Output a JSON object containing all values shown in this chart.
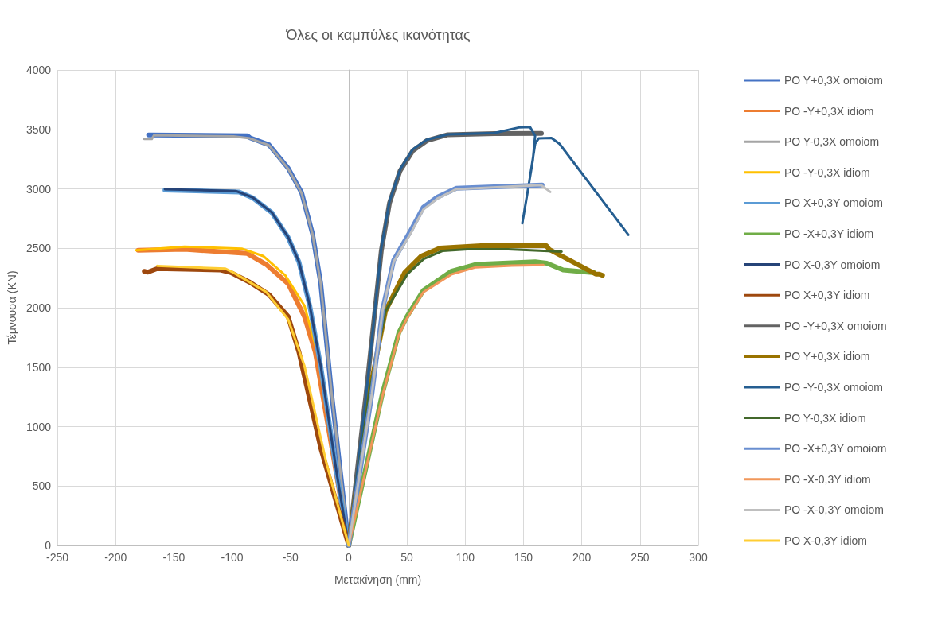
{
  "chart_data": {
    "type": "line",
    "title": "Όλες οι καμπύλες ικανότητας",
    "xlabel": "Μετακίνηση (mm)",
    "ylabel": "Τέμνουσα (KN)",
    "xlim": [
      -250,
      300
    ],
    "xticks": [
      -250,
      -200,
      -150,
      -100,
      -50,
      0,
      50,
      100,
      150,
      200,
      250,
      300
    ],
    "ylim": [
      0,
      4000
    ],
    "yticks": [
      0,
      500,
      1000,
      1500,
      2000,
      2500,
      3000,
      3500,
      4000
    ],
    "grid": true,
    "legend": "right",
    "marker": "none",
    "line_style": "solid",
    "series": [
      {
        "name": "PO Y+0,3X omoiom",
        "color": "#4472c4",
        "x": [
          -171.7,
          -87,
          -84.8,
          -68.4,
          -52,
          -40.4,
          -31,
          -24,
          -14.7,
          0
        ],
        "values": [
          3454,
          3447,
          3430,
          3370,
          3175,
          2968,
          2620,
          2205,
          1281,
          0
        ]
      },
      {
        "name": "PO -Y+0,3X idiom",
        "color": "#ed7d31",
        "x": [
          -180.6,
          -140.9,
          -87,
          -70.8,
          -52,
          -38,
          -28.7,
          -12.4,
          0
        ],
        "values": [
          2484,
          2491,
          2456,
          2364,
          2203,
          1926,
          1627,
          705,
          0
        ]
      },
      {
        "name": "PO Y-0,3X omoiom",
        "color": "#a5a5a5",
        "x": [
          -175.4,
          -169,
          -167,
          -98.8,
          -84.8,
          -68.4,
          -52,
          -40.4,
          -31,
          -24,
          -14.7,
          0
        ],
        "values": [
          3419,
          3419,
          3451,
          3442,
          3424,
          3366,
          3170,
          2963,
          2617,
          2203,
          1281,
          0
        ]
      },
      {
        "name": "PO -Y-0,3X idiom",
        "color": "#ffc000",
        "x": [
          -182.4,
          -140.9,
          -91.8,
          -73,
          -54.4,
          -38,
          -26.4,
          -12.4,
          0
        ],
        "values": [
          2484,
          2514,
          2497,
          2433,
          2272,
          2018,
          1604,
          705,
          0
        ]
      },
      {
        "name": "PO X+0,3Y omoiom",
        "color": "#5b9bd5",
        "x": [
          -157.7,
          -94,
          -82.5,
          -66,
          -52,
          -42.7,
          -33.4,
          -24,
          -10,
          0
        ],
        "values": [
          2990,
          2974,
          2925,
          2800,
          2592,
          2385,
          2016,
          1509,
          590,
          0
        ]
      },
      {
        "name": "PO -X+0,3Y idiom",
        "color": "#70ad47",
        "x": [
          0,
          29,
          43,
          50,
          64,
          88,
          109,
          160,
          170,
          184,
          210.6
        ],
        "values": [
          0,
          1281,
          1788,
          1926,
          2145,
          2306,
          2364,
          2387,
          2375,
          2318,
          2295
        ]
      },
      {
        "name": "PO X-0,3Y omoiom",
        "color": "#264478",
        "x": [
          -157.7,
          -96.5,
          -82.5,
          -66,
          -52,
          -42.7,
          -33.4,
          -24,
          -10,
          0
        ],
        "values": [
          2997,
          2981,
          2928,
          2802,
          2594,
          2387,
          2018,
          1511,
          590,
          0
        ]
      },
      {
        "name": "PO X+0,3Y idiom",
        "color": "#9e480e",
        "x": [
          -175.4,
          -172.4,
          -164.2,
          -110.5,
          -101,
          -84.8,
          -68.4,
          -52,
          -42.7,
          -24,
          0
        ],
        "values": [
          2306,
          2299,
          2329,
          2318,
          2295,
          2214,
          2110,
          1926,
          1627,
          820,
          0
        ]
      },
      {
        "name": "PO -Y+0,3X omoiom",
        "color": "#636363",
        "x": [
          0,
          15,
          28,
          35,
          44,
          55,
          67,
          85,
          125,
          165.4
        ],
        "values": [
          0,
          1281,
          2480,
          2880,
          3150,
          3320,
          3405,
          3455,
          3465,
          3466
        ]
      },
      {
        "name": "PO Y+0,3X idiom",
        "color": "#997300",
        "x": [
          0,
          17.6,
          31.6,
          48,
          62,
          78.4,
          113.6,
          169.7,
          172,
          212,
          215,
          217.8
        ],
        "values": [
          0,
          1281,
          1972,
          2295,
          2433,
          2502,
          2521,
          2521,
          2491,
          2283,
          2283,
          2272
        ]
      },
      {
        "name": "PO -Y-0,3X omoiom",
        "color": "#255e91",
        "x": [
          0,
          15.2,
          28,
          35,
          44.5,
          55,
          66.7,
          85,
          125,
          146,
          155.6,
          160,
          158,
          149,
          154,
          160,
          163,
          174,
          181,
          240
        ],
        "values": [
          0,
          1281,
          2502,
          2894,
          3170,
          3332,
          3412,
          3458,
          3470,
          3516,
          3520,
          3447,
          3240,
          2710,
          3000,
          3380,
          3424,
          3428,
          3378,
          2613
        ]
      },
      {
        "name": "PO Y-0,3X idiom",
        "color": "#43682b",
        "x": [
          0,
          17.6,
          31.6,
          50.4,
          64.4,
          80.8,
          101.9,
          137,
          182.7
        ],
        "values": [
          0,
          1281,
          1972,
          2283,
          2410,
          2479,
          2491,
          2491,
          2472
        ]
      },
      {
        "name": "PO -X+0,3Y omoiom",
        "color": "#698ed0",
        "x": [
          0,
          20,
          29,
          38.6,
          52.7,
          64,
          76,
          92.4,
          166
        ],
        "values": [
          0,
          1281,
          1980,
          2400,
          2640,
          2845,
          2930,
          3005,
          3032
        ]
      },
      {
        "name": "PO -X-0,3Y idiom",
        "color": "#f1975a",
        "x": [
          0,
          29,
          43,
          50,
          64,
          88,
          109,
          140,
          167
        ],
        "values": [
          0,
          1260,
          1770,
          1910,
          2130,
          2280,
          2340,
          2355,
          2360
        ]
      },
      {
        "name": "PO -X-0,3Y omoiom",
        "color": "#bfbfbf",
        "x": [
          0,
          20,
          29,
          38.6,
          52.7,
          64,
          76,
          92.4,
          165,
          173
        ],
        "values": [
          0,
          1281,
          1972,
          2387,
          2617,
          2825,
          2917,
          2997,
          3032,
          2974
        ]
      },
      {
        "name": "PO X-0,3Y idiom",
        "color": "#ffcd33",
        "x": [
          -164.2,
          -105.8,
          -98.8,
          -70.8,
          -52,
          -38,
          -19.4,
          0
        ],
        "values": [
          2352,
          2329,
          2295,
          2133,
          1903,
          1511,
          705,
          0
        ]
      }
    ]
  }
}
